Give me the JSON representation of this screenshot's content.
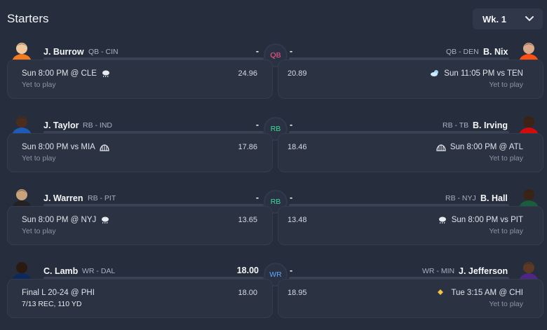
{
  "header": {
    "title": "Starters",
    "week_label": "Wk. 1"
  },
  "matchups": [
    {
      "slot": "QB",
      "slot_color": "#ff5a8c",
      "left": {
        "name": "J. Burrow",
        "pos_team": "QB - CIN",
        "points": "-",
        "game": "Sun 8:00 PM @ CLE",
        "weather_icon": "rain-cloud-icon",
        "status": "Yet to play",
        "projection": "24.96",
        "avatar_icon": "player-avatar-bengals"
      },
      "right": {
        "name": "B. Nix",
        "pos_team": "QB - DEN",
        "points": "-",
        "game": "Sun 11:05 PM vs TEN",
        "weather_icon": "partly-cloudy-icon",
        "status": "Yet to play",
        "projection": "20.89",
        "avatar_icon": "player-avatar-broncos"
      }
    },
    {
      "slot": "RB",
      "slot_color": "#3ddc97",
      "left": {
        "name": "J. Taylor",
        "pos_team": "RB - IND",
        "points": "-",
        "game": "Sun 8:00 PM vs MIA",
        "weather_icon": "dome-icon",
        "status": "Yet to play",
        "projection": "17.86",
        "avatar_icon": "player-avatar-colts"
      },
      "right": {
        "name": "B. Irving",
        "pos_team": "RB - TB",
        "points": "-",
        "game": "Sun 8:00 PM @ ATL",
        "weather_icon": "dome-icon",
        "status": "Yet to play",
        "projection": "18.46",
        "avatar_icon": "player-avatar-buccaneers"
      }
    },
    {
      "slot": "RB",
      "slot_color": "#3ddc97",
      "left": {
        "name": "J. Warren",
        "pos_team": "RB - PIT",
        "points": "-",
        "game": "Sun 8:00 PM @ NYJ",
        "weather_icon": "rain-cloud-icon",
        "status": "Yet to play",
        "projection": "13.65",
        "avatar_icon": "player-avatar-steelers"
      },
      "right": {
        "name": "B. Hall",
        "pos_team": "RB - NYJ",
        "points": "-",
        "game": "Sun 8:00 PM vs PIT",
        "weather_icon": "rain-cloud-icon",
        "status": "Yet to play",
        "projection": "13.48",
        "avatar_icon": "player-avatar-jets"
      }
    },
    {
      "slot": "WR",
      "slot_color": "#5aa9ff",
      "left": {
        "name": "C. Lamb",
        "pos_team": "WR - DAL",
        "points": "18.00",
        "game": "Final L 20-24 @ PHI",
        "weather_icon": "",
        "status": "7/13 REC, 110 YD",
        "projection": "18.00",
        "avatar_icon": "player-avatar-cowboys"
      },
      "right": {
        "name": "J. Jefferson",
        "pos_team": "WR - MIN",
        "points": "-",
        "game": "Tue 3:15 AM @ CHI",
        "weather_icon": "diamond-icon",
        "status": "Yet to play",
        "projection": "18.95",
        "avatar_icon": "player-avatar-vikings"
      }
    }
  ]
}
